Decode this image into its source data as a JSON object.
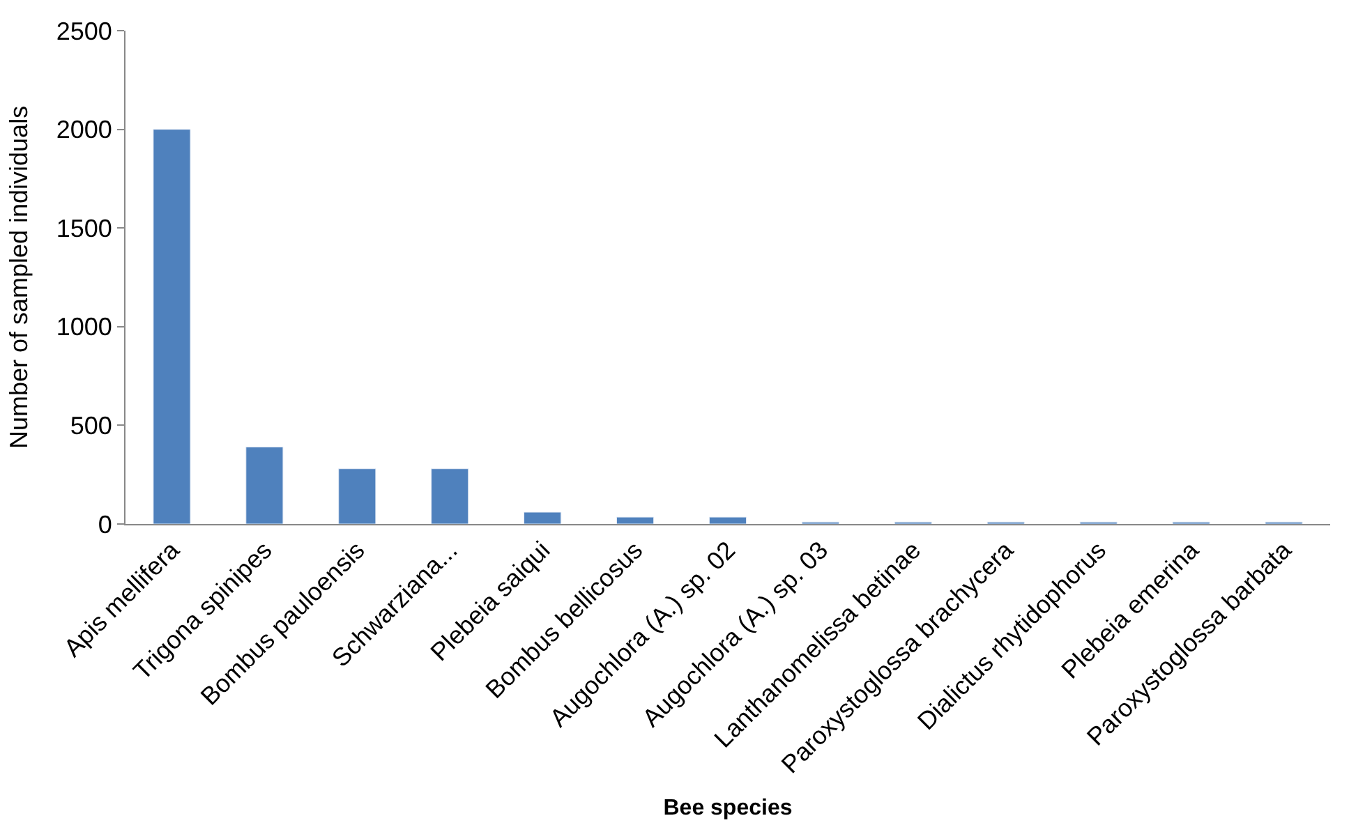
{
  "chart_data": {
    "type": "bar",
    "xlabel": "Bee species",
    "ylabel": "Number of sampled individuals",
    "categories": [
      "Apis mellifera",
      "Trigona spinipes",
      "Bombus pauloensis",
      "Schwarziana...",
      "Plebeia saiqui",
      "Bombus bellicosus",
      "Augochlora (A.) sp. 02",
      "Augochlora (A.) sp. 03",
      "Lanthanomelissa betinae",
      "Paroxystoglossa brachycera",
      "Dialictus rhytidophorus",
      "Plebeia emerina",
      "Paroxystoglossa barbata"
    ],
    "values": [
      2000,
      390,
      280,
      280,
      60,
      35,
      35,
      10,
      10,
      10,
      10,
      10,
      10
    ],
    "color": "#4f81bd",
    "ylim": [
      0,
      2500
    ],
    "yticks": [
      0,
      500,
      1000,
      1500,
      2000,
      2500
    ]
  }
}
